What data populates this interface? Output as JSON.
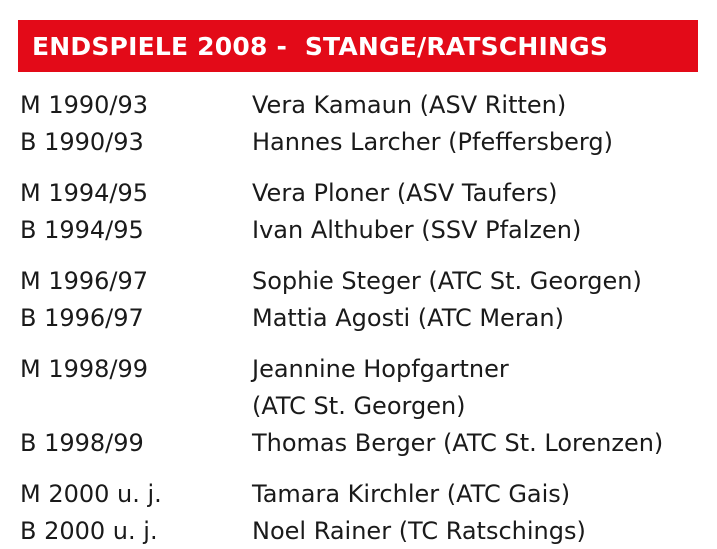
{
  "title": "ENDSPIELE 2008 -  STANGE/RATSCHINGS",
  "colors": {
    "header_bg": "#e30a18",
    "header_text": "#ffffff",
    "body_text": "#1a1a1a"
  },
  "groups": [
    {
      "rows": [
        {
          "category": "M 1990/93",
          "winner": "Vera Kamaun (ASV Ritten)"
        },
        {
          "category": "B 1990/93",
          "winner": "Hannes Larcher (Pfeffersberg)"
        }
      ]
    },
    {
      "rows": [
        {
          "category": "M 1994/95",
          "winner": "Vera Ploner (ASV Taufers)"
        },
        {
          "category": "B 1994/95",
          "winner": "Ivan Althuber (SSV Pfalzen)"
        }
      ]
    },
    {
      "rows": [
        {
          "category": "M 1996/97",
          "winner": "Sophie Steger (ATC St. Georgen)"
        },
        {
          "category": "B 1996/97",
          "winner": "Mattia Agosti (ATC Meran)"
        }
      ]
    },
    {
      "rows": [
        {
          "category": "M 1998/99",
          "winner": "Jeannine Hopfgartner"
        },
        {
          "category": "",
          "winner": "(ATC St. Georgen)"
        },
        {
          "category": "B 1998/99",
          "winner": "Thomas Berger (ATC St. Lorenzen)"
        }
      ]
    },
    {
      "rows": [
        {
          "category": "M 2000 u. j.",
          "winner": "Tamara Kirchler (ATC Gais)"
        },
        {
          "category": "B 2000 u. j.",
          "winner": "Noel Rainer (TC Ratschings)"
        }
      ]
    }
  ]
}
